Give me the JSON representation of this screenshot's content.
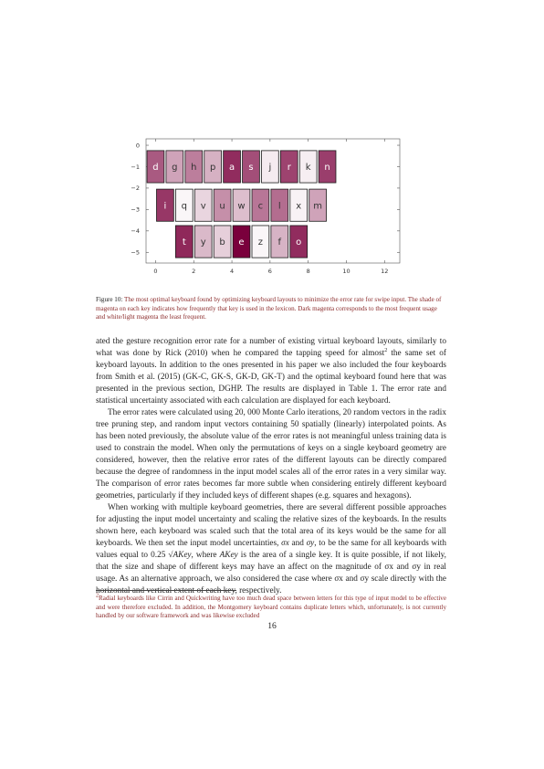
{
  "chart_data": {
    "type": "heatmap",
    "title": "",
    "xlabel": "",
    "ylabel": "",
    "xlim": [
      -0.5,
      12.8
    ],
    "ylim": [
      -5.5,
      0.3
    ],
    "x_ticks": [
      "0",
      "2",
      "4",
      "6",
      "8",
      "10",
      "12"
    ],
    "y_ticks": [
      "0",
      "−1",
      "−2",
      "−3",
      "−4",
      "−5"
    ],
    "x_tick_values": [
      0,
      2,
      4,
      6,
      8,
      10,
      12
    ],
    "y_tick_values": [
      0,
      -1,
      -2,
      -3,
      -4,
      -5
    ],
    "keys": [
      {
        "label": "d",
        "x": 0,
        "y": -1,
        "shade": 0.6
      },
      {
        "label": "g",
        "x": 1,
        "y": -1,
        "shade": 0.3
      },
      {
        "label": "h",
        "x": 2,
        "y": -1,
        "shade": 0.45
      },
      {
        "label": "p",
        "x": 3,
        "y": -1,
        "shade": 0.25
      },
      {
        "label": "a",
        "x": 4,
        "y": -1,
        "shade": 0.8
      },
      {
        "label": "s",
        "x": 5,
        "y": -1,
        "shade": 0.65
      },
      {
        "label": "j",
        "x": 6,
        "y": -1,
        "shade": 0.05
      },
      {
        "label": "r",
        "x": 7,
        "y": -1,
        "shade": 0.7
      },
      {
        "label": "k",
        "x": 8,
        "y": -1,
        "shade": 0.04
      },
      {
        "label": "n",
        "x": 9,
        "y": -1,
        "shade": 0.72
      },
      {
        "label": "i",
        "x": 0.5,
        "y": -2.8,
        "shade": 0.75
      },
      {
        "label": "q",
        "x": 1.5,
        "y": -2.8,
        "shade": 0.02
      },
      {
        "label": "v",
        "x": 2.5,
        "y": -2.8,
        "shade": 0.12
      },
      {
        "label": "u",
        "x": 3.5,
        "y": -2.8,
        "shade": 0.38
      },
      {
        "label": "w",
        "x": 4.5,
        "y": -2.8,
        "shade": 0.2
      },
      {
        "label": "c",
        "x": 5.5,
        "y": -2.8,
        "shade": 0.48
      },
      {
        "label": "l",
        "x": 6.5,
        "y": -2.8,
        "shade": 0.52
      },
      {
        "label": "x",
        "x": 7.5,
        "y": -2.8,
        "shade": 0.03
      },
      {
        "label": "m",
        "x": 8.5,
        "y": -2.8,
        "shade": 0.3
      },
      {
        "label": "t",
        "x": 1.5,
        "y": -4.5,
        "shade": 0.82
      },
      {
        "label": "y",
        "x": 2.5,
        "y": -4.5,
        "shade": 0.22
      },
      {
        "label": "b",
        "x": 3.5,
        "y": -4.5,
        "shade": 0.14
      },
      {
        "label": "e",
        "x": 4.5,
        "y": -4.5,
        "shade": 1.0
      },
      {
        "label": "z",
        "x": 5.5,
        "y": -4.5,
        "shade": 0.02
      },
      {
        "label": "f",
        "x": 6.5,
        "y": -4.5,
        "shade": 0.24
      },
      {
        "label": "o",
        "x": 7.5,
        "y": -4.5,
        "shade": 0.8
      }
    ],
    "colors": {
      "dark": "#7a003c",
      "light": "#ffffff",
      "border": "#1a1a1a"
    }
  },
  "caption": {
    "label": "Figure 10:",
    "text": "The most optimal keyboard found by optimizing keyboard layouts to minimize the error rate for swipe input. The shade of magenta on each key indicates how frequently that key is used in the lexicon. Dark magenta corresponds to the most frequent usage and white/light magenta the least frequent."
  },
  "body": {
    "p1_a": "ated the gesture recognition error rate for a number of existing virtual keyboard layouts, similarly to what was done by ",
    "p1_cite1": "Rick (2010)",
    "p1_b": " when he compared the tapping speed for almost",
    "p1_fn": "2",
    "p1_c": " the same set of keyboard layouts. In addition to the ones presented in his paper we also included the four keyboards from ",
    "p1_cite2": "Smith et al. (2015)",
    "p1_d": " (GK-C, GK-S, GK-D, GK-T) and the optimal keyboard found here that was presented in the previous section, DGHP. The results are displayed in Table 1. The error rate and statistical uncertainty associated with each calculation are displayed for each keyboard.",
    "p2": "The error rates were calculated using 20, 000 Monte Carlo iterations, 20 random vectors in the radix tree pruning step, and random input vectors containing 50 spatially (linearly) interpolated points. As has been noted previously, the absolute value of the error rates is not meaningful unless training data is used to constrain the model. When only the permutations of keys on a single keyboard geometry are considered, however, then the relative error rates of the different layouts can be directly compared because the degree of randomness in the input model scales all of the error rates in a very similar way. The comparison of error rates becomes far more subtle when considering entirely different keyboard geometries, particularly if they included keys of different shapes (e.g. squares and hexagons).",
    "p3_a": "When working with multiple keyboard geometries, there are several different possible approaches for adjusting the input model uncertainty and scaling the relative sizes of the keyboards. In the results shown here, each keyboard was scaled such that the total area of its keys would be the same for all keyboards. We then set the input model uncertainties, ",
    "p3_sx": "σx",
    "p3_and": " and ",
    "p3_sy": "σy",
    "p3_b": ", to be the same for all keyboards with values equal to 0.25 ",
    "p3_sqrt": "√AKey",
    "p3_c": ", where ",
    "p3_akey": "AKey",
    "p3_d": " is the area of a single key. It is quite possible, if not likely, that the size and shape of different keys may have an affect on the magnitude of σx and σy in real usage. As an alternative approach, we also considered the case where σx and σy scale directly with the horizontal and vertical extent of each key, respectively."
  },
  "footnote": {
    "num": "2",
    "text": "Radial keyboards like Cirrin and Quickwriting have too much dead space between letters for this type of input model to be effective and were therefore excluded. In addition, the Montgomery keyboard contains duplicate letters which, unfortunately, is not currently handled by our software framework and was likewise excluded"
  },
  "page_number": "16"
}
